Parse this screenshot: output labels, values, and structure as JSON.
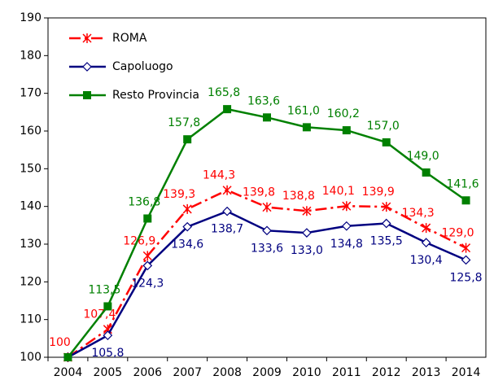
{
  "chart_data": {
    "type": "line",
    "categories": [
      "2004",
      "2005",
      "2006",
      "2007",
      "2008",
      "2009",
      "2010",
      "2011",
      "2012",
      "2013",
      "2014"
    ],
    "ylim": [
      100,
      190
    ],
    "yticks": [
      100,
      110,
      120,
      130,
      140,
      150,
      160,
      170,
      180,
      190
    ],
    "legend": "top-left",
    "series": [
      {
        "name": "ROMA",
        "color": "#ff0000",
        "marker": "asterisk",
        "dash": "dashdot",
        "values": [
          100,
          107.4,
          126.9,
          139.3,
          144.3,
          139.8,
          138.8,
          140.1,
          139.9,
          134.3,
          129.0
        ],
        "value_labels": [
          "100",
          "107,4",
          "126,9",
          "139,3",
          "144,3",
          "139,8",
          "138,8",
          "140,1",
          "139,9",
          "134,3",
          "129,0"
        ]
      },
      {
        "name": "Capoluogo",
        "color": "#000080",
        "marker": "diamond",
        "dash": "solid",
        "values": [
          100,
          105.8,
          124.3,
          134.6,
          138.7,
          133.6,
          133.0,
          134.8,
          135.5,
          130.4,
          125.8
        ],
        "value_labels": [
          null,
          "105,8",
          "124,3",
          "134,6",
          "138,7",
          "133,6",
          "133,0",
          "134,8",
          "135,5",
          "130,4",
          "125,8"
        ]
      },
      {
        "name": "Resto Provincia",
        "color": "#008000",
        "marker": "square",
        "dash": "solid",
        "values": [
          100,
          113.5,
          136.8,
          157.8,
          165.8,
          163.6,
          161.0,
          160.2,
          157.0,
          149.0,
          141.6
        ],
        "value_labels": [
          null,
          "113,5",
          "136,8",
          "157,8",
          "165,8",
          "163,6",
          "161,0",
          "160,2",
          "157,0",
          "149,0",
          "141,6"
        ]
      }
    ]
  }
}
